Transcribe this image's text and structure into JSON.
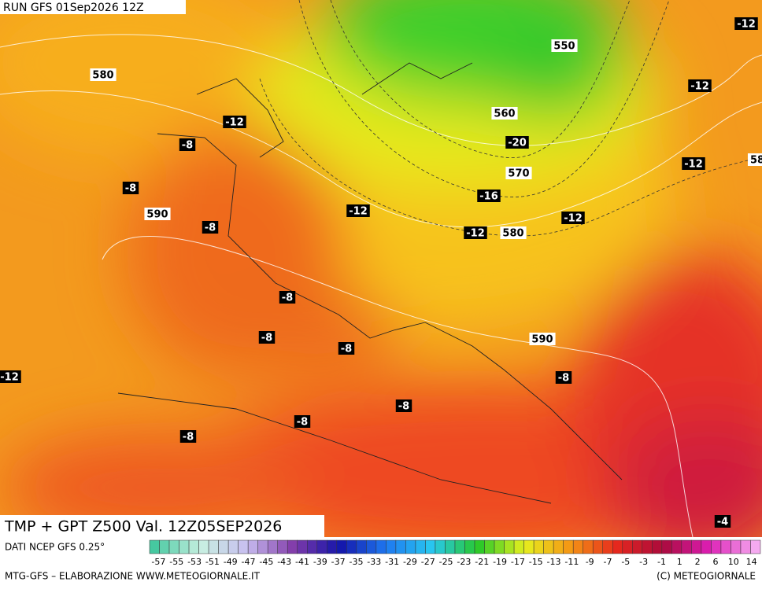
{
  "header": "RUN GFS 01Sep2026 12Z",
  "title": "TMP + GPT Z500 Val. 12Z05SEP2026",
  "source": "DATI NCEP GFS 0.25°",
  "credit": "MTG-GFS – ELABORAZIONE WWW.METEOGIORNALE.IT",
  "copyright": "(C) METEOGIORNALE",
  "scale_labels": [
    "-57",
    "-55",
    "-53",
    "-51",
    "-49",
    "-47",
    "-45",
    "-43",
    "-41",
    "-39",
    "-37",
    "-35",
    "-33",
    "-31",
    "-29",
    "-27",
    "-25",
    "-23",
    "-21",
    "-19",
    "-17",
    "-15",
    "-13",
    "-11",
    "-9",
    "-7",
    "-5",
    "-3",
    "-1",
    "1",
    "2",
    "6",
    "10",
    "14"
  ],
  "map_labels": [
    "-12",
    "550",
    "580",
    "-12",
    "-12",
    "560",
    "-8",
    "-20",
    "-12",
    "570",
    "-8",
    "-16",
    "-12",
    "590",
    "-12",
    "-8",
    "-12",
    "580",
    "-8",
    "590",
    "-8",
    "-8",
    "-12",
    "-8",
    "-8",
    "-8",
    "-8",
    "-4",
    "58"
  ]
}
